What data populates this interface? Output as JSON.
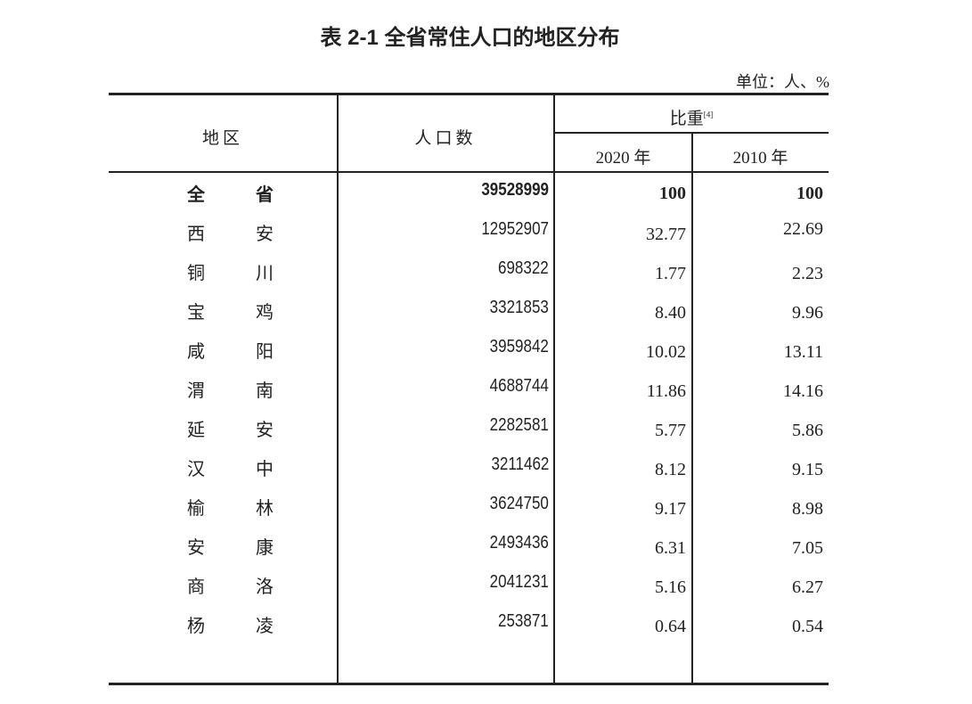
{
  "title": "表 2-1  全省常住人口的地区分布",
  "unit": "单位：人、%",
  "headers": {
    "region": "地区",
    "population": "人口数",
    "share": "比重",
    "share_note": "[4]",
    "year_2020": "2020 年",
    "year_2010": "2010 年"
  },
  "rows": [
    {
      "region": "全 省",
      "population": "39528999",
      "share_2020": "100",
      "share_2010": "100",
      "bold": true
    },
    {
      "region": "西 安",
      "population": "12952907",
      "share_2020": "32.77",
      "share_2010": "22.69"
    },
    {
      "region": "铜 川",
      "population": "698322",
      "share_2020": "1.77",
      "share_2010": "2.23"
    },
    {
      "region": "宝 鸡",
      "population": "3321853",
      "share_2020": "8.40",
      "share_2010": "9.96"
    },
    {
      "region": "咸 阳",
      "population": "3959842",
      "share_2020": "10.02",
      "share_2010": "13.11"
    },
    {
      "region": "渭 南",
      "population": "4688744",
      "share_2020": "11.86",
      "share_2010": "14.16"
    },
    {
      "region": "延 安",
      "population": "2282581",
      "share_2020": "5.77",
      "share_2010": "5.86"
    },
    {
      "region": "汉 中",
      "population": "3211462",
      "share_2020": "8.12",
      "share_2010": "9.15"
    },
    {
      "region": "榆 林",
      "population": "3624750",
      "share_2020": "9.17",
      "share_2010": "8.98"
    },
    {
      "region": "安 康",
      "population": "2493436",
      "share_2020": "6.31",
      "share_2010": "7.05"
    },
    {
      "region": "商 洛",
      "population": "2041231",
      "share_2020": "5.16",
      "share_2010": "6.27"
    },
    {
      "region": "杨 凌",
      "population": "253871",
      "share_2020": "0.64",
      "share_2010": "0.54"
    }
  ]
}
